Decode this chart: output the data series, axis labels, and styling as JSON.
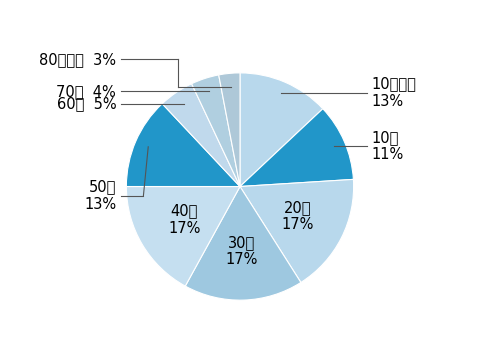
{
  "labels": [
    "10歳未満",
    "10代",
    "20代",
    "30代",
    "40代",
    "50代",
    "60代",
    "70代",
    "80歳以上"
  ],
  "values": [
    13,
    11,
    17,
    17,
    17,
    13,
    5,
    4,
    3
  ],
  "colors": [
    "#b8d8ec",
    "#2196c9",
    "#b8d8ec",
    "#9ec8e0",
    "#c5dff0",
    "#2196c9",
    "#c0d9ec",
    "#b0cfe0",
    "#aec8d8"
  ],
  "startangle": 90,
  "figsize": [
    4.8,
    3.56
  ],
  "dpi": 100,
  "edge_color": "white",
  "edge_lw": 0.8,
  "bg_color": "#ffffff"
}
